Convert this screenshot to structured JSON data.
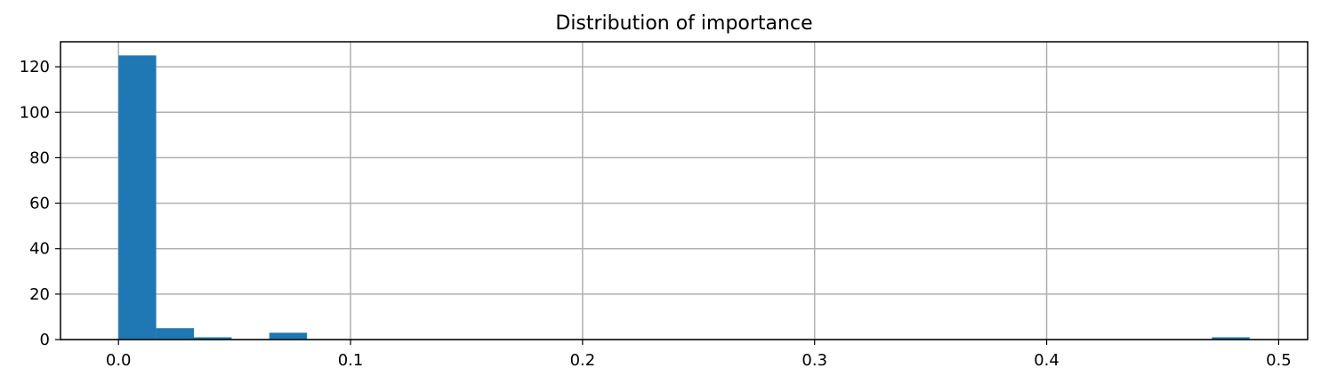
{
  "chart_data": {
    "type": "bar",
    "title": "Distribution of importance",
    "xlabel": "",
    "ylabel": "",
    "xlim": [
      -0.025,
      0.5125
    ],
    "ylim": [
      0,
      131
    ],
    "x_ticks": [
      0.0,
      0.1,
      0.2,
      0.3,
      0.4,
      0.5
    ],
    "x_tick_labels": [
      "0.0",
      "0.1",
      "0.2",
      "0.3",
      "0.4",
      "0.5"
    ],
    "y_ticks": [
      0,
      20,
      40,
      60,
      80,
      100,
      120
    ],
    "y_tick_labels": [
      "0",
      "20",
      "40",
      "60",
      "80",
      "100",
      "120"
    ],
    "grid": true,
    "bar_color": "#1f77b4",
    "bins": [
      {
        "x0": 0.0,
        "x1": 0.01625,
        "count": 125
      },
      {
        "x0": 0.01625,
        "x1": 0.0325,
        "count": 5
      },
      {
        "x0": 0.0325,
        "x1": 0.04875,
        "count": 1
      },
      {
        "x0": 0.065,
        "x1": 0.08125,
        "count": 3
      },
      {
        "x0": 0.47125,
        "x1": 0.4875,
        "count": 1
      }
    ]
  }
}
